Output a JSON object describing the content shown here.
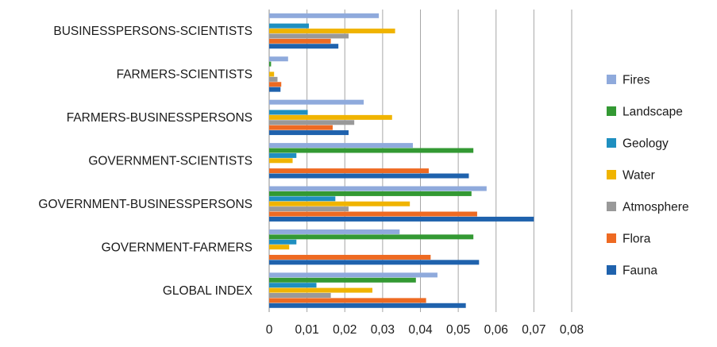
{
  "chart_data": {
    "type": "bar",
    "orientation": "horizontal",
    "title": "",
    "xlabel": "",
    "ylabel": "",
    "xlim": [
      0,
      0.08
    ],
    "grid": "vertical",
    "legend_position": "right",
    "categories": [
      "BUSINESSPERSONS-SCIENTISTS",
      "FARMERS-SCIENTISTS",
      "FARMERS-BUSINESSPERSONS",
      "GOVERNMENT-SCIENTISTS",
      "GOVERNMENT-BUSINESSPERSONS",
      "GOVERNMENT-FARMERS",
      "GLOBAL INDEX"
    ],
    "ticks": [
      "0",
      "0,01",
      "0,02",
      "0,03",
      "0,04",
      "0,05",
      "0,06",
      "0,07",
      "0,08"
    ],
    "series": [
      {
        "name": "Fires",
        "color": "#8faadc",
        "values": [
          0.029,
          0.005,
          0.025,
          0.038,
          0.0575,
          0.0345,
          0.0445
        ]
      },
      {
        "name": "Landscape",
        "color": "#339933",
        "values": [
          0.0,
          0.0005,
          0.0,
          0.054,
          0.0535,
          0.054,
          0.0388
        ]
      },
      {
        "name": "Geology",
        "color": "#1f8fc0",
        "values": [
          0.0105,
          0.0,
          0.0102,
          0.0072,
          0.0175,
          0.0072,
          0.0125
        ]
      },
      {
        "name": "Water",
        "color": "#f0b400",
        "values": [
          0.0333,
          0.0013,
          0.0325,
          0.0062,
          0.0372,
          0.0053,
          0.0273
        ]
      },
      {
        "name": "Atmosphere",
        "color": "#999999",
        "values": [
          0.021,
          0.0022,
          0.0225,
          0.0,
          0.021,
          0.0,
          0.0163
        ]
      },
      {
        "name": "Flora",
        "color": "#ee6a22",
        "values": [
          0.0163,
          0.0032,
          0.0168,
          0.0422,
          0.055,
          0.0427,
          0.0415
        ]
      },
      {
        "name": "Fauna",
        "color": "#1f62ad",
        "values": [
          0.0183,
          0.003,
          0.021,
          0.0528,
          0.07,
          0.0555,
          0.052
        ]
      }
    ]
  }
}
